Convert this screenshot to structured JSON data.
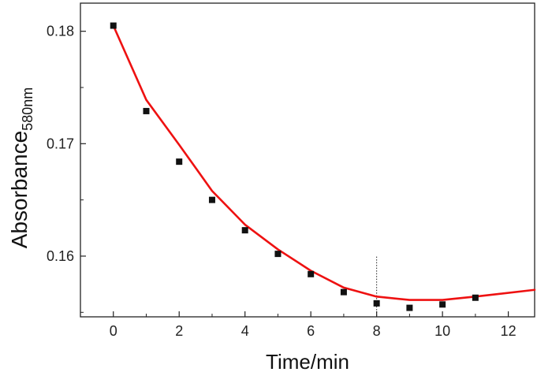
{
  "chart_data": {
    "type": "scatter",
    "xlabel": "Time/min",
    "ylabel": "Absorbance",
    "ylabel_subscript": "580nm",
    "xlim": [
      -1,
      12.8
    ],
    "ylim": [
      0.1546,
      0.1825
    ],
    "xticks": [
      0,
      2,
      4,
      6,
      8,
      10,
      12
    ],
    "xtick_labels": [
      "0",
      "2",
      "4",
      "6",
      "8",
      "10",
      "12"
    ],
    "yticks": [
      0.16,
      0.17,
      0.18
    ],
    "ytick_labels": [
      "0.16",
      "0.17",
      "0.18"
    ],
    "grid": false,
    "legend": "none",
    "series": [
      {
        "kind": "points",
        "color": "#111111",
        "marker": "square",
        "x": [
          0,
          1,
          2,
          3,
          4,
          5,
          6,
          7,
          8,
          9,
          10,
          11
        ],
        "y": [
          0.1805,
          0.1729,
          0.1684,
          0.165,
          0.1623,
          0.1602,
          0.1584,
          0.1568,
          0.1558,
          0.1554,
          0.1557,
          0.1563
        ]
      },
      {
        "kind": "line",
        "color": "#ee1111",
        "x": [
          0,
          1,
          2,
          3,
          4,
          5,
          6,
          7,
          8,
          9,
          10,
          11,
          12.8
        ],
        "y": [
          0.1805,
          0.1739,
          0.1699,
          0.1658,
          0.1628,
          0.1606,
          0.1587,
          0.1572,
          0.1564,
          0.1561,
          0.1561,
          0.1564,
          0.157
        ]
      }
    ],
    "annotations": [
      {
        "kind": "vertical-dotted-line",
        "x": 8,
        "y_top": 0.15995,
        "y_bottom": 0.1546
      }
    ]
  }
}
